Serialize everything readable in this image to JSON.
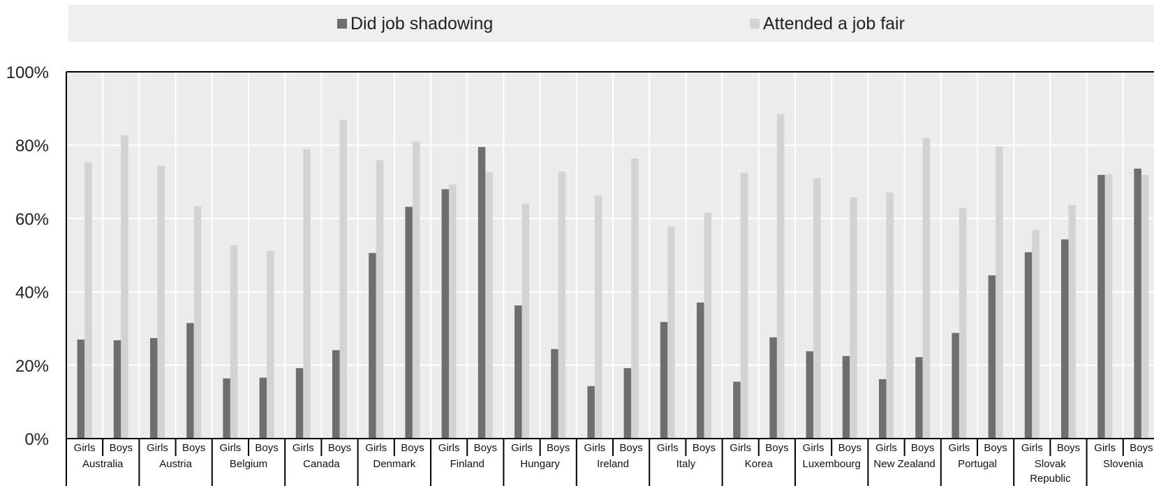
{
  "legend": {
    "shadowing_label": "Did job shadowing",
    "fair_label": "Attended a job fair"
  },
  "colors": {
    "shadowing": "#6e6e6e",
    "fair": "#d3d3d3",
    "plot_bg": "#ececec"
  },
  "chart_data": {
    "type": "bar",
    "y_ticks": [
      "0%",
      "20%",
      "40%",
      "60%",
      "80%",
      "100%"
    ],
    "ylim": [
      0,
      100
    ],
    "grid": true,
    "legend_position": "top",
    "countries": [
      {
        "name": "Australia",
        "lines": [
          "Australia"
        ],
        "girls": [
          27,
          75.3
        ],
        "boys": [
          26.8,
          82.7
        ]
      },
      {
        "name": "Austria",
        "lines": [
          "Austria"
        ],
        "girls": [
          27.4,
          74.4
        ],
        "boys": [
          31.5,
          63.3
        ]
      },
      {
        "name": "Belgium",
        "lines": [
          "Belgium"
        ],
        "girls": [
          16.4,
          52.7
        ],
        "boys": [
          16.6,
          51.2
        ]
      },
      {
        "name": "Canada",
        "lines": [
          "Canada"
        ],
        "girls": [
          19.2,
          79
        ],
        "boys": [
          24.1,
          86.9
        ]
      },
      {
        "name": "Denmark",
        "lines": [
          "Denmark"
        ],
        "girls": [
          50.6,
          75.9
        ],
        "boys": [
          63.2,
          81.1
        ]
      },
      {
        "name": "Finland",
        "lines": [
          "Finland"
        ],
        "girls": [
          68,
          69.3
        ],
        "boys": [
          79.5,
          72.6
        ]
      },
      {
        "name": "Hungary",
        "lines": [
          "Hungary"
        ],
        "girls": [
          36.3,
          64
        ],
        "boys": [
          24.4,
          72.8
        ]
      },
      {
        "name": "Ireland",
        "lines": [
          "Ireland"
        ],
        "girls": [
          14.3,
          66.3
        ],
        "boys": [
          19.2,
          76.4
        ]
      },
      {
        "name": "Italy",
        "lines": [
          "Italy"
        ],
        "girls": [
          31.8,
          57.8
        ],
        "boys": [
          37.1,
          61.6
        ]
      },
      {
        "name": "Korea",
        "lines": [
          "Korea"
        ],
        "girls": [
          15.5,
          72.5
        ],
        "boys": [
          27.6,
          88.5
        ]
      },
      {
        "name": "Luxembourg",
        "lines": [
          "Luxembourg"
        ],
        "girls": [
          23.8,
          71
        ],
        "boys": [
          22.5,
          65.8
        ]
      },
      {
        "name": "New Zealand",
        "lines": [
          "New Zealand"
        ],
        "girls": [
          16.2,
          67.1
        ],
        "boys": [
          22.2,
          82
        ]
      },
      {
        "name": "Portugal",
        "lines": [
          "Portugal"
        ],
        "girls": [
          28.8,
          62.9
        ],
        "boys": [
          44.5,
          79.6
        ]
      },
      {
        "name": "Slovak Republic",
        "lines": [
          "Slovak",
          "Republic"
        ],
        "girls": [
          50.8,
          56.9
        ],
        "boys": [
          54.3,
          63.7
        ]
      },
      {
        "name": "Slovenia",
        "lines": [
          "Slovenia"
        ],
        "girls": [
          71.9,
          72.1
        ],
        "boys": [
          73.6,
          71.9
        ]
      }
    ],
    "gender_labels": [
      "Girls",
      "Boys"
    ],
    "series": [
      {
        "name": "Did job shadowing"
      },
      {
        "name": "Attended a job fair"
      }
    ]
  }
}
